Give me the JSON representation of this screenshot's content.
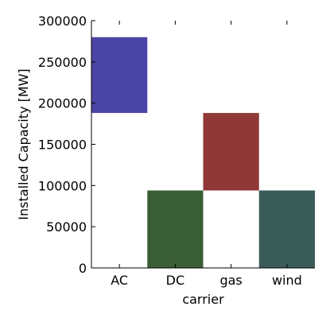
{
  "chart_data": {
    "type": "bar",
    "xlabel": "carrier",
    "ylabel": "Installed Capacity [MW]",
    "categories": [
      "AC",
      "DC",
      "gas",
      "wind"
    ],
    "ylim": [
      0,
      300000
    ],
    "yticks": [
      0,
      50000,
      100000,
      150000,
      200000,
      250000,
      300000
    ],
    "ytick_labels": [
      "0",
      "50000",
      "100000",
      "150000",
      "200000",
      "250000",
      "300000"
    ],
    "bars": [
      {
        "category": "AC",
        "bottom": 188000,
        "top": 280000,
        "color": "#4b45a6"
      },
      {
        "category": "DC",
        "bottom": 0,
        "top": 94000,
        "color": "#3a5e35"
      },
      {
        "category": "gas",
        "bottom": 94000,
        "top": 188000,
        "color": "#8f3836"
      },
      {
        "category": "wind",
        "bottom": 0,
        "top": 94000,
        "color": "#395c59"
      }
    ],
    "grid": false,
    "legend": "none"
  }
}
